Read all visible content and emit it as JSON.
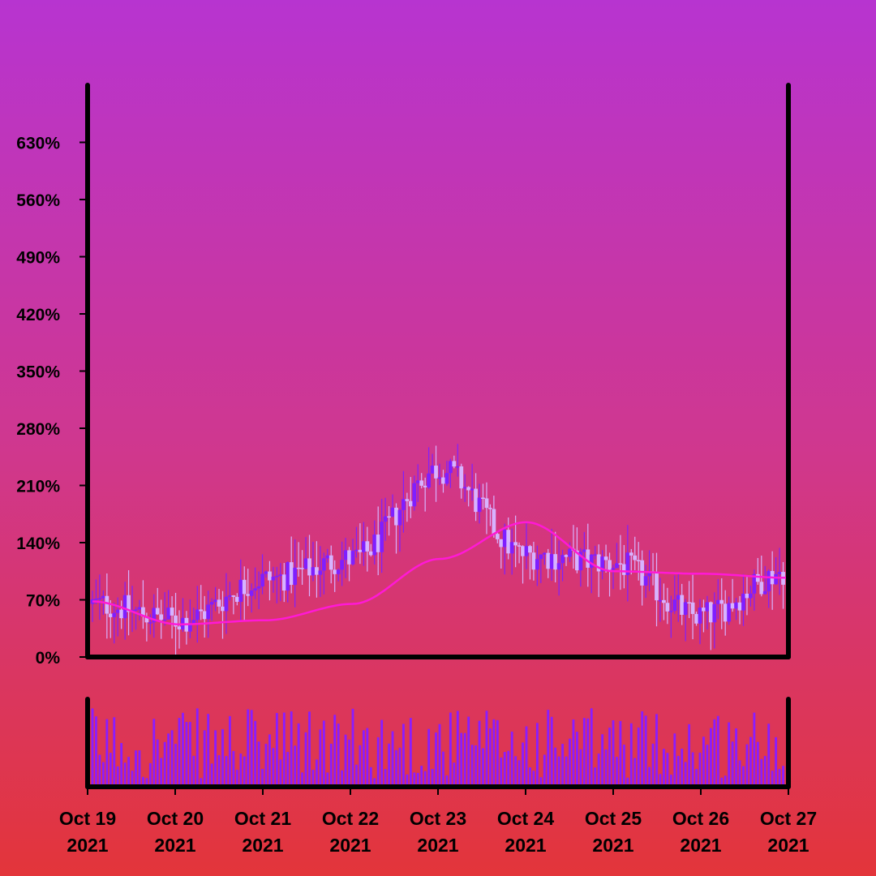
{
  "chart_data": {
    "type": "candlestick",
    "title": "",
    "xlabel": "",
    "ylabel": "",
    "y_axis": {
      "ticks": [
        0,
        70,
        140,
        210,
        280,
        350,
        420,
        490,
        560,
        630
      ],
      "tick_labels": [
        "0%",
        "70%",
        "140%",
        "210%",
        "280%",
        "350%",
        "420%",
        "490%",
        "560%",
        "630%"
      ],
      "ylim": [
        0,
        700
      ]
    },
    "x_axis": {
      "start": "2021-10-19",
      "end": "2021-10-27",
      "ticks": [
        {
          "line1": "Oct 19",
          "line2": "2021"
        },
        {
          "line1": "Oct 20",
          "line2": "2021"
        },
        {
          "line1": "Oct 21",
          "line2": "2021"
        },
        {
          "line1": "Oct 22",
          "line2": "2021"
        },
        {
          "line1": "Oct 23",
          "line2": "2021"
        },
        {
          "line1": "Oct 24",
          "line2": "2021"
        },
        {
          "line1": "Oct 25",
          "line2": "2021"
        },
        {
          "line1": "Oct 26",
          "line2": "2021"
        },
        {
          "line1": "Oct 27",
          "line2": "2021"
        }
      ]
    },
    "grid": false,
    "legend": "none",
    "colors": {
      "up": "#7f1fff",
      "down": "#d7b3ff",
      "moving_average": "#ff19d6",
      "volume": "#8a1dff",
      "axis": "#000000"
    },
    "price_close_by_day": [
      {
        "date": "2021-10-19",
        "value": 65
      },
      {
        "date": "2021-10-20",
        "value": 45
      },
      {
        "date": "2021-10-21",
        "value": 95
      },
      {
        "date": "2021-10-22",
        "value": 120
      },
      {
        "date": "2021-10-23",
        "value": 230
      },
      {
        "date": "2021-10-24",
        "value": 125
      },
      {
        "date": "2021-10-25",
        "value": 115
      },
      {
        "date": "2021-10-26",
        "value": 50
      },
      {
        "date": "2021-10-27",
        "value": 105
      }
    ],
    "moving_average": [
      {
        "date": "2021-10-19",
        "value": 68
      },
      {
        "date": "2021-10-20",
        "value": 40
      },
      {
        "date": "2021-10-21",
        "value": 45
      },
      {
        "date": "2021-10-22",
        "value": 65
      },
      {
        "date": "2021-10-23",
        "value": 120
      },
      {
        "date": "2021-10-24",
        "value": 165
      },
      {
        "date": "2021-10-25",
        "value": 105
      },
      {
        "date": "2021-10-26",
        "value": 102
      },
      {
        "date": "2021-10-27",
        "value": 97
      }
    ],
    "volume_range": [
      0,
      100
    ]
  }
}
